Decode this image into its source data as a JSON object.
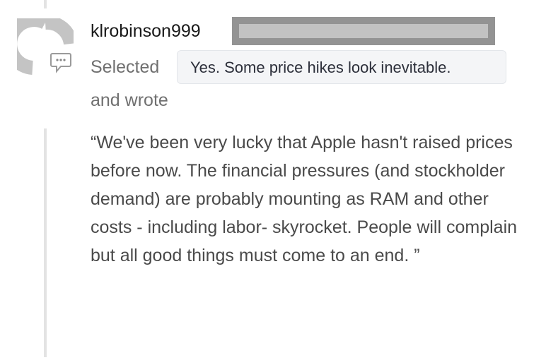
{
  "comment": {
    "username": "klrobinson999",
    "selected_label": "Selected",
    "selected_choice": "Yes. Some price hikes look inevitable.",
    "and_wrote_label": "and wrote",
    "text": "“We've been very lucky that Apple hasn't raised prices before now. The financial pressures (and stockholder demand) are probably mounting as RAM and other costs - including labor- skyrocket. People will complain but all good things must come to an end. ”",
    "icons": {
      "avatar": "avatar-placeholder-icon",
      "comment": "comment-bubble-icon"
    }
  }
}
